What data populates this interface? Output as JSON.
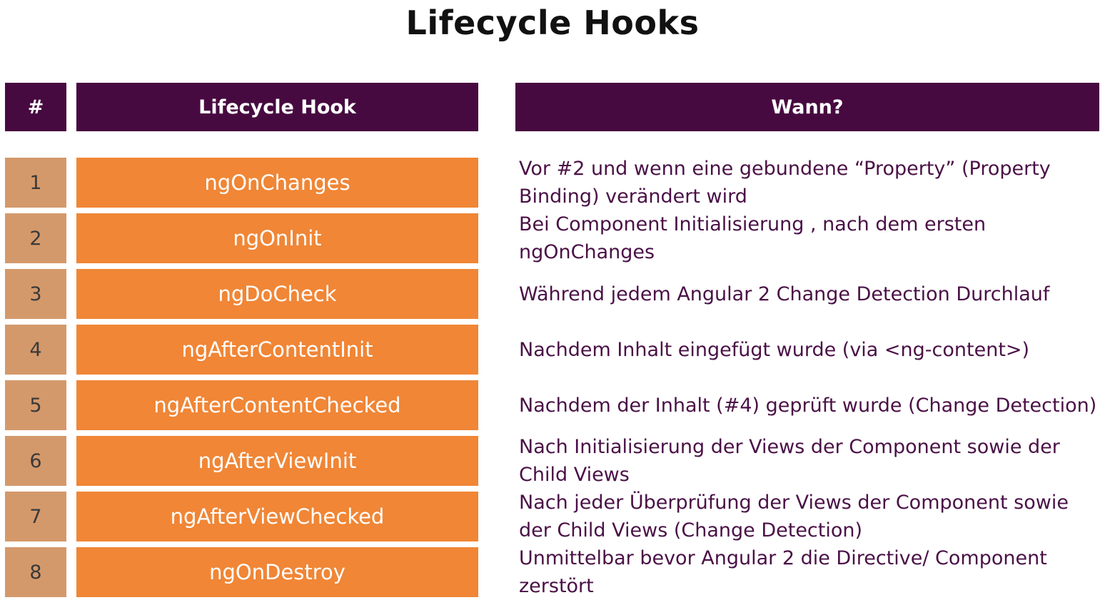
{
  "title": "Lifecycle Hooks",
  "headers": {
    "number": "#",
    "hook": "Lifecycle Hook",
    "when": "Wann?"
  },
  "rows": [
    {
      "num": "1",
      "hook": "ngOnChanges",
      "when": "Vor #2 und wenn eine gebundene “Property” (Property Binding) verändert wird"
    },
    {
      "num": "2",
      "hook": "ngOnInit",
      "when": "Bei Component Initialisierung , nach dem ersten ngOnChanges"
    },
    {
      "num": "3",
      "hook": "ngDoCheck",
      "when": "Während jedem Angular 2 Change Detection Durchlauf"
    },
    {
      "num": "4",
      "hook": "ngAfterContentInit",
      "when": "Nachdem Inhalt eingefügt wurde (via <ng-content>)"
    },
    {
      "num": "5",
      "hook": "ngAfterContentChecked",
      "when": "Nachdem der Inhalt (#4) geprüft wurde (Change Detection)"
    },
    {
      "num": "6",
      "hook": "ngAfterViewInit",
      "when": "Nach Initialisierung der Views der Component sowie der Child Views"
    },
    {
      "num": "7",
      "hook": "ngAfterViewChecked",
      "when": "Nach jeder Überprüfung der Views der Component sowie der Child Views (Change Detection)"
    },
    {
      "num": "8",
      "hook": "ngOnDestroy",
      "when": "Unmittelbar bevor Angular 2 die Directive/ Component zerstört"
    }
  ],
  "colors": {
    "header_bg": "#470a40",
    "number_bg": "#d4996b",
    "hook_bg": "#f08636",
    "when_text": "#4a1146"
  }
}
